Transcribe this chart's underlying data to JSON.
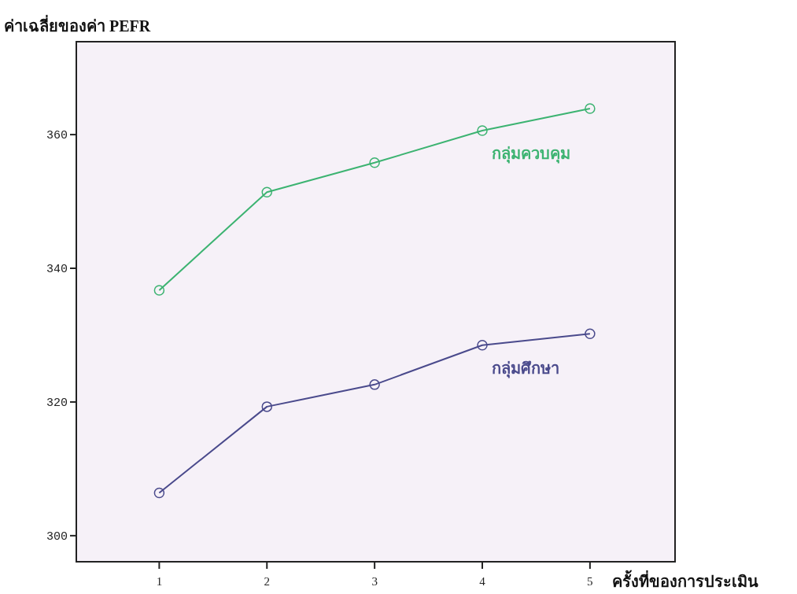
{
  "chart_data": {
    "type": "line",
    "ylabel": "ค่าเฉลี่ยของค่า PEFR",
    "xlabel": "ครั้งที่ของการประเมิน",
    "x": [
      1,
      2,
      3,
      4,
      5
    ],
    "xlim": [
      0.23,
      5.79
    ],
    "xticks": [
      1,
      2,
      3,
      4,
      5
    ],
    "ylim": [
      296.1,
      373.9
    ],
    "yticks": [
      300,
      320,
      340,
      360
    ],
    "marker": "circle",
    "grid": false,
    "legend": false,
    "series": [
      {
        "name": "กลุ่มควบคุม",
        "color": "#3cb371",
        "values": [
          336.7,
          351.4,
          355.8,
          360.6,
          363.9
        ]
      },
      {
        "name": "กลุ่มศึกษา",
        "color": "#4a4a8c",
        "values": [
          306.4,
          319.3,
          322.6,
          328.5,
          330.2
        ]
      }
    ]
  }
}
